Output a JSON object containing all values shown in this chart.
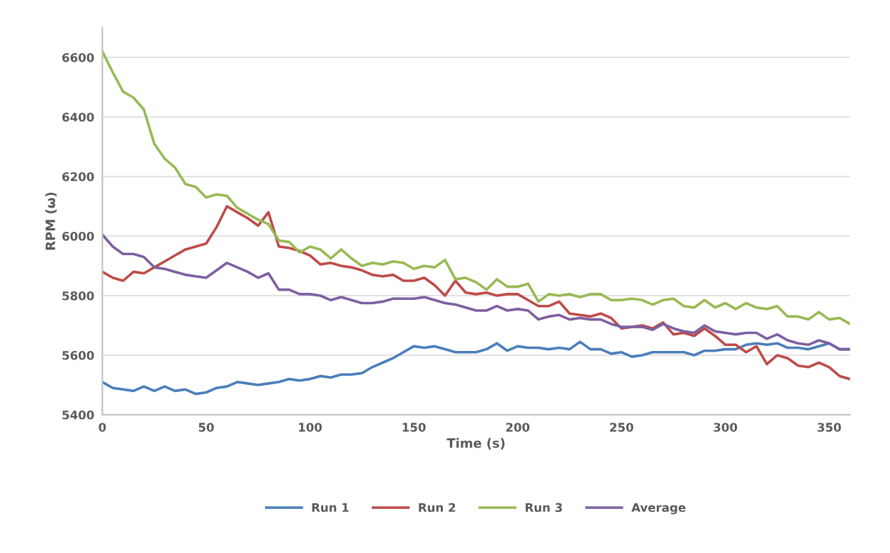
{
  "chart_data": {
    "type": "line",
    "xlabel": "Time (s)",
    "ylabel": "RPM (ω)",
    "x": [
      0,
      5,
      10,
      15,
      20,
      25,
      30,
      35,
      40,
      45,
      50,
      55,
      60,
      65,
      70,
      75,
      80,
      85,
      90,
      95,
      100,
      105,
      110,
      115,
      120,
      125,
      130,
      135,
      140,
      145,
      150,
      155,
      160,
      165,
      170,
      175,
      180,
      185,
      190,
      195,
      200,
      205,
      210,
      215,
      220,
      225,
      230,
      235,
      240,
      245,
      250,
      255,
      260,
      265,
      270,
      275,
      280,
      285,
      290,
      295,
      300,
      305,
      310,
      315,
      320,
      325,
      330,
      335,
      340,
      345,
      350,
      355,
      360
    ],
    "series": [
      {
        "name": "Run 1",
        "color": "#4a7ebb",
        "values": [
          5510,
          5490,
          5485,
          5480,
          5495,
          5480,
          5495,
          5480,
          5485,
          5470,
          5475,
          5490,
          5495,
          5510,
          5505,
          5500,
          5505,
          5510,
          5520,
          5515,
          5520,
          5530,
          5525,
          5535,
          5535,
          5540,
          5560,
          5575,
          5590,
          5610,
          5630,
          5625,
          5630,
          5620,
          5610,
          5610,
          5610,
          5620,
          5640,
          5615,
          5630,
          5625,
          5625,
          5620,
          5625,
          5620,
          5645,
          5620,
          5620,
          5605,
          5610,
          5595,
          5600,
          5610,
          5610,
          5610,
          5610,
          5600,
          5615,
          5615,
          5620,
          5620,
          5635,
          5640,
          5635,
          5640,
          5625,
          5625,
          5620,
          5630,
          5640,
          5620,
          5620
        ]
      },
      {
        "name": "Run 2",
        "color": "#be4b48",
        "values": [
          5880,
          5860,
          5850,
          5880,
          5875,
          5895,
          5915,
          5935,
          5955,
          5965,
          5975,
          6030,
          6100,
          6080,
          6060,
          6035,
          6080,
          5965,
          5960,
          5950,
          5935,
          5905,
          5910,
          5900,
          5895,
          5885,
          5870,
          5865,
          5870,
          5850,
          5850,
          5860,
          5835,
          5800,
          5850,
          5810,
          5805,
          5810,
          5800,
          5805,
          5805,
          5785,
          5765,
          5765,
          5780,
          5740,
          5735,
          5730,
          5740,
          5725,
          5690,
          5695,
          5700,
          5690,
          5710,
          5670,
          5675,
          5665,
          5690,
          5665,
          5635,
          5635,
          5610,
          5630,
          5570,
          5600,
          5590,
          5565,
          5560,
          5575,
          5560,
          5530,
          5520
        ]
      },
      {
        "name": "Run 3",
        "color": "#98b954",
        "values": [
          6620,
          6550,
          6485,
          6465,
          6425,
          6310,
          6260,
          6230,
          6175,
          6165,
          6130,
          6140,
          6135,
          6095,
          6075,
          6055,
          6040,
          5985,
          5980,
          5945,
          5965,
          5955,
          5925,
          5955,
          5925,
          5900,
          5910,
          5905,
          5915,
          5910,
          5890,
          5900,
          5895,
          5920,
          5855,
          5860,
          5845,
          5820,
          5855,
          5830,
          5830,
          5840,
          5780,
          5805,
          5800,
          5805,
          5795,
          5805,
          5805,
          5785,
          5785,
          5790,
          5785,
          5770,
          5785,
          5790,
          5765,
          5760,
          5785,
          5760,
          5775,
          5755,
          5775,
          5760,
          5755,
          5765,
          5730,
          5730,
          5720,
          5745,
          5720,
          5725,
          5705
        ]
      },
      {
        "name": "Average",
        "color": "#7d60a0",
        "values": [
          6005,
          5965,
          5940,
          5940,
          5930,
          5895,
          5890,
          5880,
          5870,
          5865,
          5860,
          5885,
          5910,
          5895,
          5880,
          5860,
          5875,
          5820,
          5820,
          5805,
          5805,
          5800,
          5785,
          5795,
          5785,
          5775,
          5775,
          5780,
          5790,
          5790,
          5790,
          5795,
          5785,
          5775,
          5770,
          5760,
          5750,
          5750,
          5765,
          5750,
          5755,
          5750,
          5720,
          5730,
          5735,
          5720,
          5725,
          5720,
          5720,
          5705,
          5695,
          5695,
          5695,
          5685,
          5705,
          5690,
          5680,
          5675,
          5700,
          5680,
          5675,
          5670,
          5675,
          5675,
          5655,
          5670,
          5650,
          5640,
          5635,
          5650,
          5640,
          5620,
          5620
        ]
      }
    ],
    "xlim": [
      0,
      360
    ],
    "xticks": [
      0,
      50,
      100,
      150,
      200,
      250,
      300,
      350
    ],
    "ylim": [
      5400,
      6700
    ],
    "yticks": [
      5400,
      5600,
      5800,
      6000,
      6200,
      6400,
      6600
    ],
    "grid": "y",
    "legend": "bottom",
    "marker": "none",
    "line_style": "solid"
  }
}
